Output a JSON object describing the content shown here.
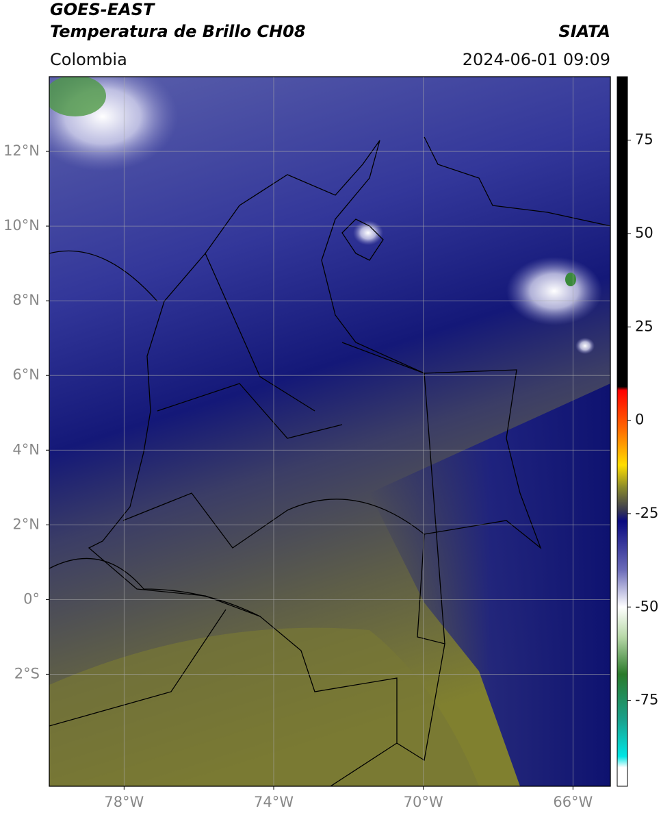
{
  "header": {
    "line1": "GOES-EAST",
    "line2": "Temperatura de Brillo CH08",
    "brand": "SIATA",
    "region": "Colombia",
    "datetime": "2024-06-01 09:09"
  },
  "map": {
    "xlim": [
      -80,
      -65
    ],
    "ylim": [
      -5,
      14
    ],
    "xticks": [
      {
        "value": -78,
        "label": "78°W"
      },
      {
        "value": -74,
        "label": "74°W"
      },
      {
        "value": -70,
        "label": "70°W"
      },
      {
        "value": -66,
        "label": "66°W"
      }
    ],
    "yticks": [
      {
        "value": 12,
        "label": "12°N"
      },
      {
        "value": 10,
        "label": "10°N"
      },
      {
        "value": 8,
        "label": "8°N"
      },
      {
        "value": 6,
        "label": "6°N"
      },
      {
        "value": 4,
        "label": "4°N"
      },
      {
        "value": 2,
        "label": "2°N"
      },
      {
        "value": 0,
        "label": "0°"
      },
      {
        "value": -2,
        "label": "2°S"
      }
    ]
  },
  "colorbar": {
    "lim": [
      -98,
      92
    ],
    "ticks": [
      75,
      50,
      25,
      0,
      -25,
      -50,
      -75
    ],
    "colormap": [
      {
        "value": 92,
        "color": "#000000"
      },
      {
        "value": 9,
        "color": "#000000"
      },
      {
        "value": 8,
        "color": "#ff0000"
      },
      {
        "value": -2,
        "color": "#ff6600"
      },
      {
        "value": -12,
        "color": "#ffdd00"
      },
      {
        "value": -18,
        "color": "#8a8a2a"
      },
      {
        "value": -24,
        "color": "#3a3a50"
      },
      {
        "value": -27,
        "color": "#0a0a80"
      },
      {
        "value": -40,
        "color": "#6a6ab8"
      },
      {
        "value": -50,
        "color": "#ffffff"
      },
      {
        "value": -58,
        "color": "#b8d8a8"
      },
      {
        "value": -68,
        "color": "#2a7a2a"
      },
      {
        "value": -80,
        "color": "#1aa08a"
      },
      {
        "value": -90,
        "color": "#00e5e5"
      },
      {
        "value": -93,
        "color": "#ffffff"
      }
    ]
  }
}
